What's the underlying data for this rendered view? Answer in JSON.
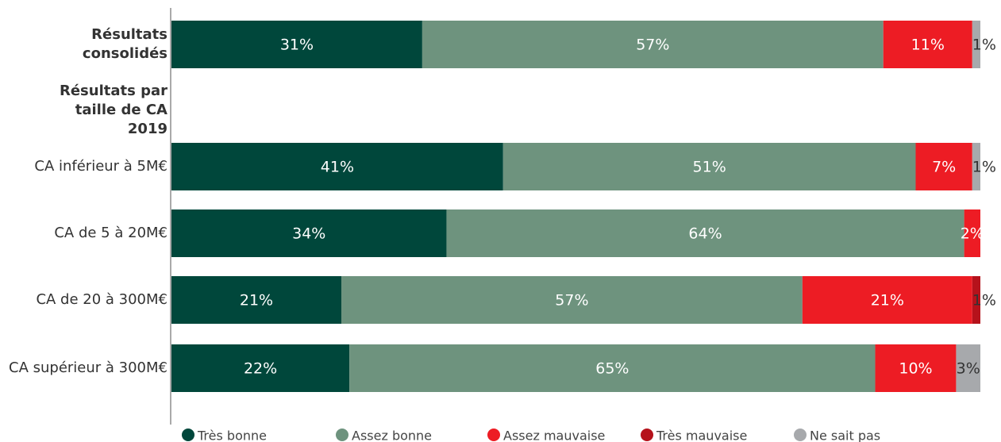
{
  "chart_data": {
    "type": "stacked-bar-horizontal",
    "categories": [
      "Résultats consolidés",
      "Résultats par taille de CA 2019",
      "CA inférieur à 5M€",
      "CA de 5 à 20M€",
      "CA de 20 à 300M€",
      "CA supérieur à 300M€"
    ],
    "xlim": [
      0,
      100
    ],
    "legend": "bottom",
    "series": [
      {
        "name": "Très bonne",
        "color": "#00473b",
        "values": [
          31,
          null,
          41,
          34,
          21,
          22
        ],
        "value_labels": [
          "31%",
          null,
          "41%",
          "34%",
          "21%",
          "22%"
        ]
      },
      {
        "name": "Assez bonne",
        "color": "#6e937e",
        "values": [
          57,
          null,
          51,
          64,
          57,
          65
        ],
        "value_labels": [
          "57%",
          null,
          "51%",
          "64%",
          "57%",
          "65%"
        ]
      },
      {
        "name": "Assez mauvaise",
        "color": "#ed1c24",
        "values": [
          11,
          null,
          7,
          2,
          21,
          10
        ],
        "value_labels": [
          "11%",
          null,
          "7%",
          "2%",
          "21%",
          "10%"
        ]
      },
      {
        "name": "Très mauvaise",
        "color": "#b5121b",
        "values": [
          null,
          null,
          null,
          null,
          1,
          null
        ],
        "value_labels": [
          null,
          null,
          null,
          null,
          "1%",
          null
        ]
      },
      {
        "name": "Ne sait pas",
        "color": "#a7a9ac",
        "values": [
          1,
          null,
          1,
          null,
          null,
          3
        ],
        "value_labels": [
          "1%",
          null,
          "1%",
          null,
          null,
          "3%"
        ]
      }
    ]
  }
}
